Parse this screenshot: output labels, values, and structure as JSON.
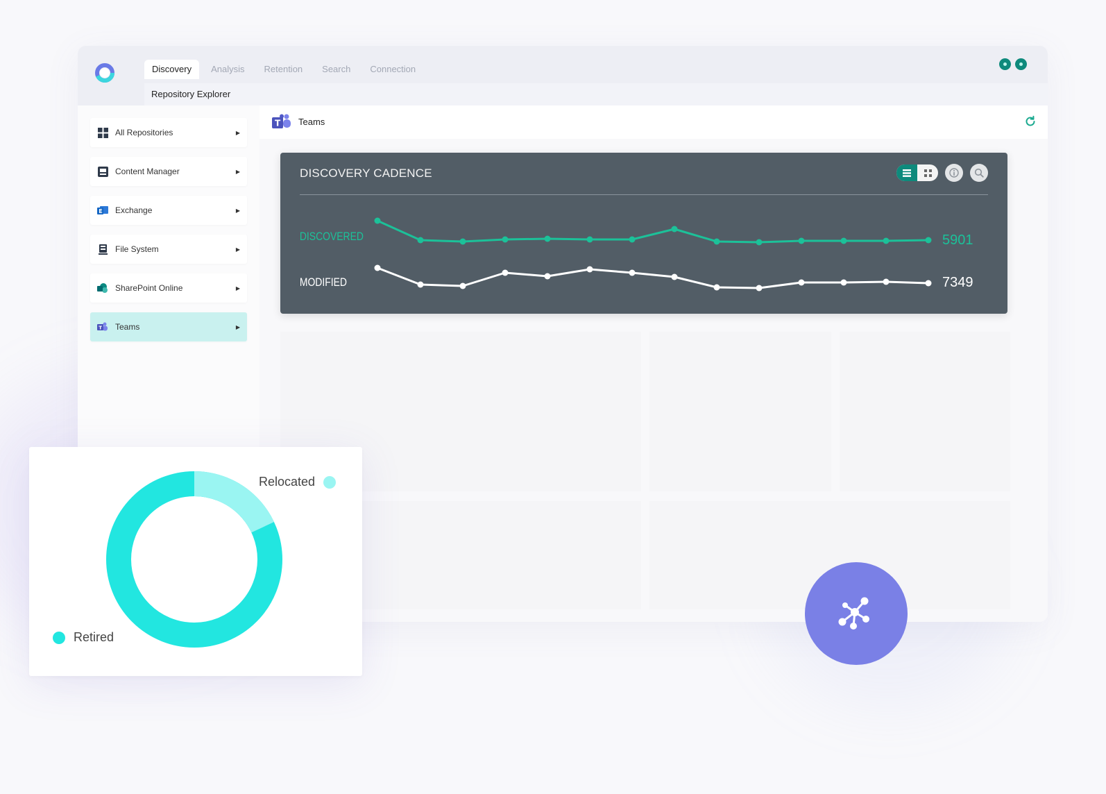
{
  "app": {
    "tabs": [
      {
        "label": "Discovery",
        "active": true
      },
      {
        "label": "Analysis"
      },
      {
        "label": "Retention"
      },
      {
        "label": "Search"
      },
      {
        "label": "Connection"
      }
    ],
    "subnav": "Repository Explorer"
  },
  "sidebar": {
    "items": [
      {
        "label": "All Repositories",
        "icon": "grid-icon"
      },
      {
        "label": "Content Manager",
        "icon": "content-manager-icon"
      },
      {
        "label": "Exchange",
        "icon": "exchange-icon"
      },
      {
        "label": "File System",
        "icon": "file-system-icon"
      },
      {
        "label": "SharePoint Online",
        "icon": "sharepoint-icon"
      },
      {
        "label": "Teams",
        "icon": "teams-icon",
        "active": true
      }
    ]
  },
  "main": {
    "title": "Teams"
  },
  "cadence": {
    "title": "DISCOVERY CADENCE",
    "discovered_label": "DISCOVERED",
    "discovered_value": "5901",
    "modified_label": "MODIFIED",
    "modified_value": "7349"
  },
  "donut": {
    "relocated_label": "Relocated",
    "retired_label": "Retired",
    "relocated_fraction": 0.18,
    "colors": {
      "relocated": "#9af5f2",
      "retired": "#22e6e0"
    }
  },
  "colors": {
    "accent": "#0e8a7c",
    "discovered": "#1cc199",
    "modified": "#ffffff",
    "fab": "#7a80e6",
    "active_sidebar": "#c9f1ef"
  }
}
